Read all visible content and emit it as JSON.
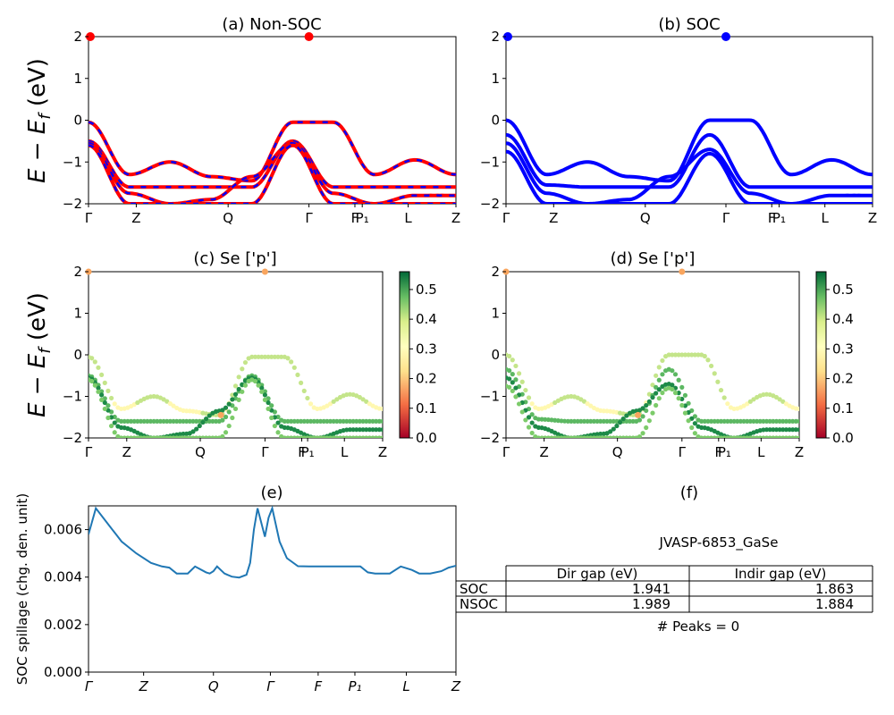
{
  "chart_data": [
    {
      "id": "a",
      "type": "line",
      "title": "(a) Non-SOC",
      "ylabel": "E − E_f (eV)",
      "ylim": [
        -2,
        2
      ],
      "yticks": [
        "2",
        "1",
        "0",
        "−1",
        "−2"
      ],
      "xtick_labels": [
        "Γ",
        "Z",
        "Q",
        "Γ",
        "F",
        "P₁",
        "L",
        "Z"
      ],
      "series": [
        {
          "color": "#ff0000",
          "style": "solid-dashed-overlay",
          "values": [
            -0.05,
            -1.3,
            -1.0,
            -1.35,
            -1.45,
            -0.05,
            -0.05,
            -1.3,
            -0.95,
            -1.3
          ]
        },
        {
          "color": "#ff0000",
          "values": [
            -0.5,
            -1.6,
            -1.6,
            -1.6,
            -1.6,
            -0.5,
            -1.6,
            -1.6,
            -1.6,
            -1.6
          ]
        },
        {
          "color": "#ff0000",
          "values": [
            -0.55,
            -1.75,
            -2.0,
            -1.9,
            -1.35,
            -0.55,
            -1.75,
            -2.0,
            -1.8,
            -1.8
          ]
        },
        {
          "color": "#ff0000",
          "values": [
            -0.6,
            -2.0,
            -2.0,
            -2.0,
            -2.0,
            -0.6,
            -2.0,
            -2.0,
            -2.0,
            -2.0
          ]
        }
      ],
      "markers": [
        {
          "x": "Γ",
          "y": 2
        },
        {
          "x": "Γ",
          "y": 2
        }
      ]
    },
    {
      "id": "b",
      "type": "line",
      "title": "(b) SOC",
      "ylim": [
        -2,
        2
      ],
      "yticks": [
        "2",
        "1",
        "0",
        "−1",
        "−2"
      ],
      "xtick_labels": [
        "Γ",
        "Z",
        "Q",
        "Γ",
        "F",
        "P₁",
        "L",
        "Z"
      ],
      "series": [
        {
          "color": "#0000ff",
          "values": [
            -0.0,
            -1.3,
            -1.0,
            -1.35,
            -1.45,
            -0.0,
            -0.0,
            -1.3,
            -0.95,
            -1.3
          ]
        },
        {
          "color": "#0000ff",
          "values": [
            -0.35,
            -1.55,
            -1.6,
            -1.6,
            -1.6,
            -0.35,
            -1.6,
            -1.6,
            -1.6,
            -1.6
          ]
        },
        {
          "color": "#0000ff",
          "values": [
            -0.55,
            -1.75,
            -2.0,
            -1.9,
            -1.35,
            -0.7,
            -1.75,
            -2.0,
            -1.8,
            -1.8
          ]
        },
        {
          "color": "#0000ff",
          "values": [
            -0.75,
            -2.0,
            -2.0,
            -2.0,
            -2.0,
            -0.8,
            -2.0,
            -2.0,
            -2.0,
            -2.0
          ]
        }
      ]
    },
    {
      "id": "c",
      "type": "scatter",
      "title": "(c)  Se ['p']",
      "ylabel": "E − E_f (eV)",
      "ylim": [
        -2,
        2
      ],
      "yticks": [
        "2",
        "1",
        "0",
        "−1",
        "−2"
      ],
      "xtick_labels": [
        "Γ",
        "Z",
        "Q",
        "Γ",
        "F",
        "P₁",
        "L",
        "Z"
      ],
      "colorbar": {
        "ticks": [
          "0.0",
          "0.1",
          "0.2",
          "0.3",
          "0.4",
          "0.5"
        ],
        "range": [
          0,
          0.56
        ]
      }
    },
    {
      "id": "d",
      "type": "scatter",
      "title": "(d) Se ['p']",
      "ylim": [
        -2,
        2
      ],
      "yticks": [
        "2",
        "1",
        "0",
        "−1",
        "−2"
      ],
      "xtick_labels": [
        "Γ",
        "Z",
        "Q",
        "Γ",
        "F",
        "P₁",
        "L",
        "Z"
      ],
      "colorbar": {
        "ticks": [
          "0.0",
          "0.1",
          "0.2",
          "0.3",
          "0.4",
          "0.5"
        ],
        "range": [
          0,
          0.56
        ]
      }
    },
    {
      "id": "e",
      "type": "line",
      "title": "(e)",
      "ylabel": "SOC spillage (chg. den. unit)",
      "ylim": [
        0,
        0.007
      ],
      "yticks": [
        "0.006",
        "0.004",
        "0.002",
        "0.000"
      ],
      "xtick_labels": [
        "Γ",
        "Z",
        "Q",
        "Γ",
        "F",
        "P₁",
        "L",
        "Z"
      ],
      "series": [
        {
          "color": "#1f77b4",
          "x": [
            0.0,
            0.02,
            0.05,
            0.09,
            0.13,
            0.17,
            0.2,
            0.22,
            0.24,
            0.25,
            0.27,
            0.29,
            0.32,
            0.33,
            0.34,
            0.35,
            0.37,
            0.39,
            0.41,
            0.43,
            0.44,
            0.45,
            0.46,
            0.48,
            0.49,
            0.5,
            0.52,
            0.54,
            0.57,
            0.6,
            0.63,
            0.66,
            0.69,
            0.72,
            0.74,
            0.76,
            0.78,
            0.8,
            0.82,
            0.85,
            0.88,
            0.9,
            0.93,
            0.96,
            0.98,
            1.0
          ],
          "values": [
            0.0058,
            0.0069,
            0.0063,
            0.0055,
            0.005,
            0.0046,
            0.00445,
            0.0044,
            0.00415,
            0.00415,
            0.00415,
            0.00445,
            0.0042,
            0.00415,
            0.00425,
            0.00445,
            0.00415,
            0.00402,
            0.00398,
            0.0041,
            0.0046,
            0.006,
            0.0069,
            0.0057,
            0.0065,
            0.0069,
            0.0055,
            0.0048,
            0.00446,
            0.00445,
            0.00445,
            0.00445,
            0.00445,
            0.00445,
            0.00445,
            0.0042,
            0.00415,
            0.00415,
            0.00415,
            0.00445,
            0.0043,
            0.00415,
            0.00415,
            0.00425,
            0.0044,
            0.00448
          ]
        }
      ]
    }
  ],
  "table": {
    "panel_title": "(f)",
    "name": "JVASP-6853_GaSe",
    "headers": [
      "",
      "Dir gap (eV)",
      "Indir gap (eV)"
    ],
    "rows": [
      [
        "SOC",
        "1.941",
        "1.863"
      ],
      [
        "NSOC",
        "1.989",
        "1.884"
      ]
    ],
    "peaks": "# Peaks = 0"
  },
  "colors": {
    "nonsoc_primary": "#ff0000",
    "nonsoc_secondary": "#0000ff",
    "soc": "#0000ff",
    "spillage": "#1f77b4"
  }
}
